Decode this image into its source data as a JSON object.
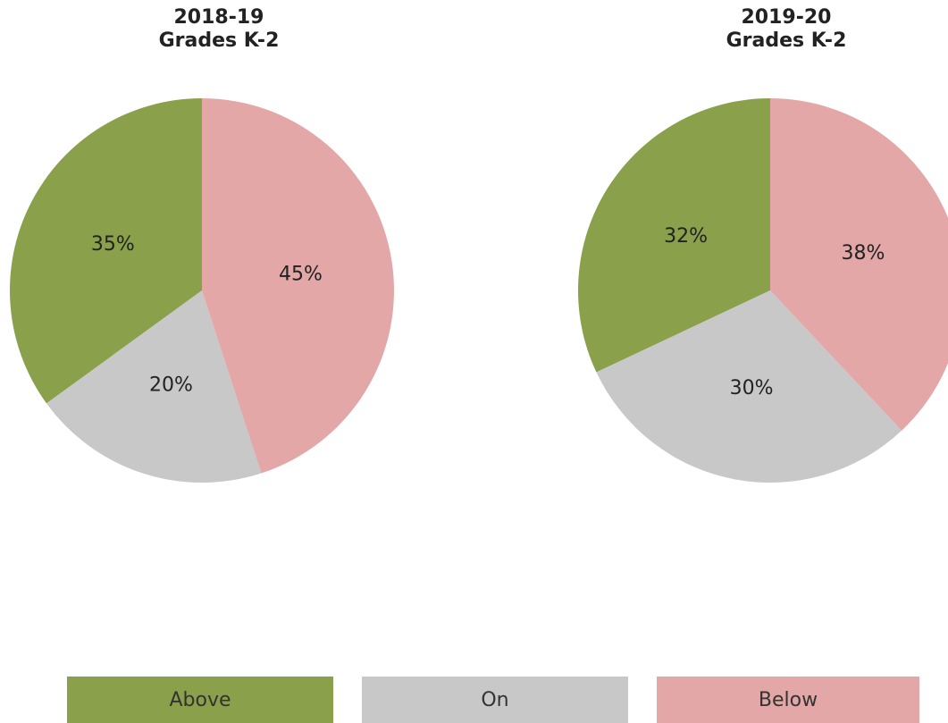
{
  "chart_data": [
    {
      "type": "pie",
      "title": "2018-19",
      "subtitle": "Grades K-2",
      "categories": [
        "Above",
        "On",
        "Below"
      ],
      "values": [
        35,
        20,
        45
      ],
      "value_labels": [
        "35%",
        "20%",
        "45%"
      ],
      "colors": [
        "#8aa04a",
        "#c8c8c8",
        "#e3a7a7"
      ]
    },
    {
      "type": "pie",
      "title": "2019-20",
      "subtitle": "Grades K-2",
      "categories": [
        "Above",
        "On",
        "Below"
      ],
      "values": [
        32,
        30,
        38
      ],
      "value_labels": [
        "32%",
        "30%",
        "38%"
      ],
      "colors": [
        "#8aa04a",
        "#c8c8c8",
        "#e3a7a7"
      ]
    }
  ]
}
